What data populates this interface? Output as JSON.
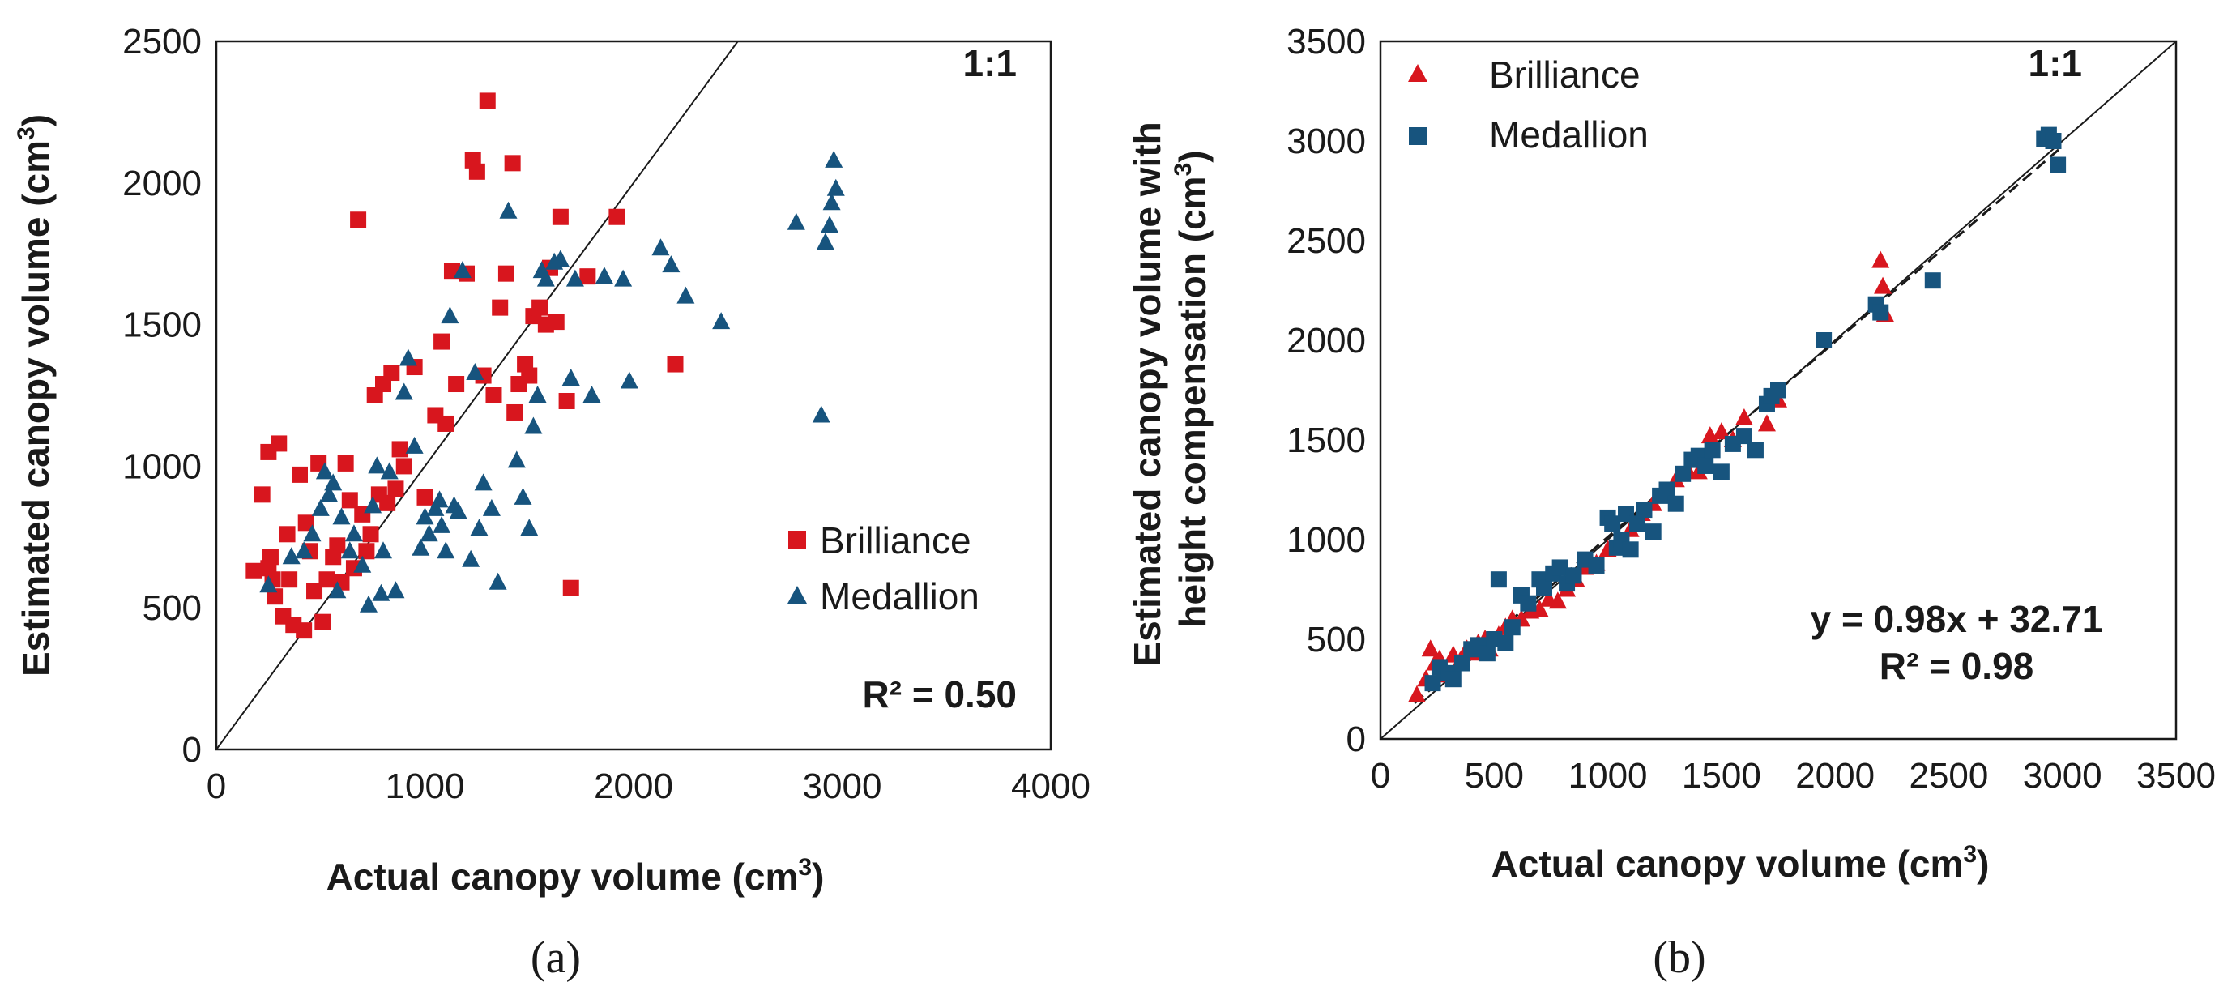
{
  "chart_data": [
    {
      "panel": "(a)",
      "type": "scatter",
      "xlabel_main": "Actual canopy volume (cm",
      "xlabel_sup": "3",
      "xlabel_end": ")",
      "ylabel_main": "Estimated canopy volume (cm",
      "ylabel_sup": "3",
      "ylabel_end": ")",
      "xlim": [
        0,
        4000
      ],
      "ylim": [
        0,
        2500
      ],
      "xticks": [
        0,
        1000,
        2000,
        3000,
        4000
      ],
      "yticks": [
        0,
        500,
        1000,
        1500,
        2000,
        2500
      ],
      "xtick_labels": [
        "0",
        "1000",
        "2000",
        "3000",
        "4000"
      ],
      "ytick_labels": [
        "0",
        "500",
        "1000",
        "1500",
        "2000",
        "2500"
      ],
      "reference_line_label": "1:1",
      "r2_label": "R² = 0.50",
      "legend": [
        "Brilliance",
        "Medallion"
      ],
      "legend_position": "lower-right",
      "series": [
        {
          "name": "Brilliance",
          "marker": "square",
          "color": "#d8161e",
          "points": [
            [
              180,
              630
            ],
            [
              220,
              900
            ],
            [
              250,
              640
            ],
            [
              260,
              680
            ],
            [
              270,
              600
            ],
            [
              280,
              540
            ],
            [
              250,
              1050
            ],
            [
              300,
              1080
            ],
            [
              320,
              470
            ],
            [
              340,
              760
            ],
            [
              350,
              600
            ],
            [
              370,
              440
            ],
            [
              400,
              970
            ],
            [
              420,
              420
            ],
            [
              430,
              800
            ],
            [
              450,
              700
            ],
            [
              470,
              560
            ],
            [
              490,
              1010
            ],
            [
              510,
              450
            ],
            [
              530,
              600
            ],
            [
              560,
              680
            ],
            [
              580,
              720
            ],
            [
              600,
              590
            ],
            [
              620,
              1010
            ],
            [
              640,
              880
            ],
            [
              660,
              640
            ],
            [
              680,
              1870
            ],
            [
              700,
              830
            ],
            [
              720,
              700
            ],
            [
              740,
              760
            ],
            [
              760,
              1250
            ],
            [
              780,
              900
            ],
            [
              800,
              1290
            ],
            [
              820,
              870
            ],
            [
              840,
              1330
            ],
            [
              860,
              920
            ],
            [
              880,
              1060
            ],
            [
              900,
              1000
            ],
            [
              950,
              1350
            ],
            [
              1000,
              890
            ],
            [
              1050,
              1180
            ],
            [
              1080,
              1440
            ],
            [
              1100,
              1150
            ],
            [
              1130,
              1690
            ],
            [
              1150,
              1290
            ],
            [
              1200,
              1680
            ],
            [
              1230,
              2080
            ],
            [
              1250,
              2040
            ],
            [
              1280,
              1320
            ],
            [
              1300,
              2290
            ],
            [
              1330,
              1250
            ],
            [
              1360,
              1560
            ],
            [
              1390,
              1680
            ],
            [
              1420,
              2070
            ],
            [
              1430,
              1190
            ],
            [
              1450,
              1290
            ],
            [
              1480,
              1360
            ],
            [
              1500,
              1320
            ],
            [
              1520,
              1530
            ],
            [
              1550,
              1560
            ],
            [
              1580,
              1500
            ],
            [
              1600,
              1700
            ],
            [
              1630,
              1510
            ],
            [
              1650,
              1880
            ],
            [
              1680,
              1230
            ],
            [
              1700,
              570
            ],
            [
              1780,
              1670
            ],
            [
              1920,
              1880
            ],
            [
              2200,
              1360
            ]
          ]
        },
        {
          "name": "Medallion",
          "marker": "triangle",
          "color": "#17547e",
          "points": [
            [
              250,
              580
            ],
            [
              360,
              680
            ],
            [
              420,
              700
            ],
            [
              460,
              760
            ],
            [
              500,
              850
            ],
            [
              520,
              980
            ],
            [
              540,
              900
            ],
            [
              560,
              940
            ],
            [
              580,
              560
            ],
            [
              600,
              820
            ],
            [
              640,
              700
            ],
            [
              660,
              760
            ],
            [
              700,
              650
            ],
            [
              730,
              510
            ],
            [
              750,
              860
            ],
            [
              770,
              1000
            ],
            [
              790,
              550
            ],
            [
              800,
              700
            ],
            [
              830,
              980
            ],
            [
              860,
              560
            ],
            [
              900,
              1260
            ],
            [
              920,
              1380
            ],
            [
              950,
              1070
            ],
            [
              980,
              710
            ],
            [
              1000,
              820
            ],
            [
              1020,
              760
            ],
            [
              1050,
              850
            ],
            [
              1070,
              880
            ],
            [
              1080,
              790
            ],
            [
              1100,
              700
            ],
            [
              1120,
              1530
            ],
            [
              1140,
              860
            ],
            [
              1160,
              840
            ],
            [
              1180,
              1690
            ],
            [
              1220,
              670
            ],
            [
              1240,
              1330
            ],
            [
              1260,
              780
            ],
            [
              1280,
              940
            ],
            [
              1320,
              850
            ],
            [
              1350,
              590
            ],
            [
              1400,
              1900
            ],
            [
              1440,
              1020
            ],
            [
              1470,
              890
            ],
            [
              1500,
              780
            ],
            [
              1520,
              1140
            ],
            [
              1540,
              1250
            ],
            [
              1560,
              1690
            ],
            [
              1580,
              1660
            ],
            [
              1620,
              1720
            ],
            [
              1650,
              1730
            ],
            [
              1700,
              1310
            ],
            [
              1720,
              1660
            ],
            [
              1800,
              1250
            ],
            [
              1860,
              1670
            ],
            [
              1950,
              1660
            ],
            [
              1980,
              1300
            ],
            [
              2130,
              1770
            ],
            [
              2180,
              1710
            ],
            [
              2250,
              1600
            ],
            [
              2420,
              1510
            ],
            [
              2780,
              1860
            ],
            [
              2900,
              1180
            ],
            [
              2920,
              1790
            ],
            [
              2940,
              1850
            ],
            [
              2950,
              1930
            ],
            [
              2960,
              2080
            ],
            [
              2970,
              1980
            ]
          ]
        }
      ]
    },
    {
      "panel": "(b)",
      "type": "scatter",
      "xlabel_main": "Actual canopy volume (cm",
      "xlabel_sup": "3",
      "xlabel_end": ")",
      "ylabel_line1": "Estimated canopy volume with",
      "ylabel_main": "height compensation (cm",
      "ylabel_sup": "3",
      "ylabel_end": ")",
      "xlim": [
        0,
        3500
      ],
      "ylim": [
        0,
        3500
      ],
      "xticks": [
        0,
        500,
        1000,
        1500,
        2000,
        2500,
        3000,
        3500
      ],
      "yticks": [
        0,
        500,
        1000,
        1500,
        2000,
        2500,
        3000,
        3500
      ],
      "xtick_labels": [
        "0",
        "500",
        "1000",
        "1500",
        "2000",
        "2500",
        "3000",
        "3500"
      ],
      "ytick_labels": [
        "0",
        "500",
        "1000",
        "1500",
        "2000",
        "2500",
        "3000",
        "3500"
      ],
      "reference_line_label": "1:1",
      "fit_label": "y = 0.98x + 32.71",
      "r2_label": "R² = 0.98",
      "fit": {
        "slope": 0.98,
        "intercept": 32.71
      },
      "legend": [
        "Brilliance",
        "Medallion"
      ],
      "legend_position": "top-left",
      "series": [
        {
          "name": "Brilliance",
          "marker": "triangle",
          "color": "#d8161e",
          "points": [
            [
              160,
              220
            ],
            [
              200,
              300
            ],
            [
              220,
              450
            ],
            [
              240,
              380
            ],
            [
              260,
              400
            ],
            [
              280,
              350
            ],
            [
              300,
              320
            ],
            [
              320,
              420
            ],
            [
              350,
              390
            ],
            [
              380,
              450
            ],
            [
              400,
              430
            ],
            [
              430,
              480
            ],
            [
              460,
              500
            ],
            [
              480,
              450
            ],
            [
              520,
              520
            ],
            [
              550,
              560
            ],
            [
              580,
              600
            ],
            [
              620,
              600
            ],
            [
              660,
              640
            ],
            [
              700,
              650
            ],
            [
              740,
              700
            ],
            [
              780,
              690
            ],
            [
              820,
              750
            ],
            [
              860,
              800
            ],
            [
              900,
              860
            ],
            [
              950,
              880
            ],
            [
              1000,
              950
            ],
            [
              1050,
              1000
            ],
            [
              1100,
              1050
            ],
            [
              1150,
              1130
            ],
            [
              1200,
              1180
            ],
            [
              1250,
              1220
            ],
            [
              1300,
              1300
            ],
            [
              1350,
              1350
            ],
            [
              1400,
              1340
            ],
            [
              1450,
              1520
            ],
            [
              1500,
              1540
            ],
            [
              1550,
              1500
            ],
            [
              1600,
              1610
            ],
            [
              1700,
              1580
            ],
            [
              1750,
              1700
            ],
            [
              2200,
              2400
            ],
            [
              2210,
              2270
            ],
            [
              2220,
              2130
            ]
          ]
        },
        {
          "name": "Medallion",
          "marker": "square",
          "color": "#17547e",
          "points": [
            [
              230,
              280
            ],
            [
              260,
              360
            ],
            [
              300,
              330
            ],
            [
              320,
              300
            ],
            [
              360,
              380
            ],
            [
              400,
              450
            ],
            [
              430,
              470
            ],
            [
              470,
              430
            ],
            [
              500,
              500
            ],
            [
              520,
              800
            ],
            [
              550,
              480
            ],
            [
              580,
              560
            ],
            [
              620,
              720
            ],
            [
              650,
              680
            ],
            [
              700,
              800
            ],
            [
              720,
              760
            ],
            [
              760,
              830
            ],
            [
              790,
              860
            ],
            [
              820,
              780
            ],
            [
              850,
              820
            ],
            [
              900,
              900
            ],
            [
              950,
              870
            ],
            [
              1000,
              1110
            ],
            [
              1020,
              1080
            ],
            [
              1040,
              960
            ],
            [
              1060,
              1000
            ],
            [
              1080,
              1130
            ],
            [
              1100,
              950
            ],
            [
              1130,
              1080
            ],
            [
              1160,
              1150
            ],
            [
              1200,
              1040
            ],
            [
              1230,
              1220
            ],
            [
              1260,
              1250
            ],
            [
              1300,
              1180
            ],
            [
              1330,
              1330
            ],
            [
              1370,
              1400
            ],
            [
              1400,
              1420
            ],
            [
              1430,
              1370
            ],
            [
              1460,
              1450
            ],
            [
              1500,
              1340
            ],
            [
              1550,
              1480
            ],
            [
              1600,
              1520
            ],
            [
              1650,
              1450
            ],
            [
              1700,
              1680
            ],
            [
              1720,
              1720
            ],
            [
              1750,
              1750
            ],
            [
              1950,
              2000
            ],
            [
              2180,
              2180
            ],
            [
              2200,
              2140
            ],
            [
              2430,
              2300
            ],
            [
              2920,
              3010
            ],
            [
              2940,
              3030
            ],
            [
              2960,
              3000
            ],
            [
              2980,
              2880
            ]
          ]
        }
      ]
    }
  ],
  "panel_labels": [
    "(a)",
    "(b)"
  ]
}
